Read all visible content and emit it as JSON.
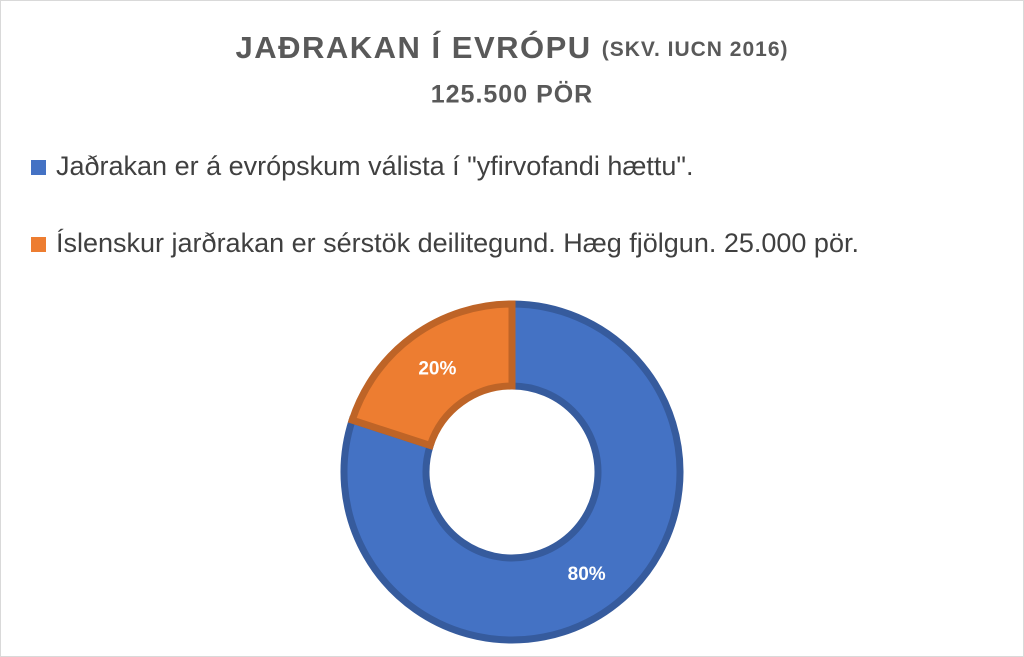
{
  "chart_data": {
    "type": "doughnut",
    "title": "JAÐRAKAN Í EVRÓPU",
    "title_note": "(SKV. IUCN 2016)",
    "subtitle": "125.500 PÖR",
    "categories": [
      "Jaðrakan er á evrópskum válista í \"yfirvofandi hættu\".",
      "Íslenskur jarðrakan er sérstök deilitegund. Hæg fjölgun. 25.000 pör."
    ],
    "values": [
      80,
      20
    ],
    "value_labels": [
      "80%",
      "20%"
    ],
    "colors": [
      "#4472c4",
      "#ed7d31"
    ],
    "legend": "top"
  }
}
